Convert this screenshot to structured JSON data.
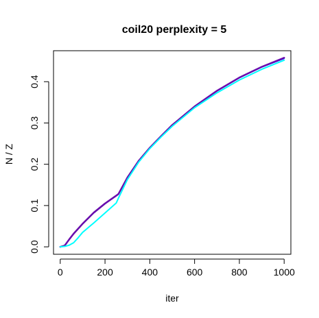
{
  "chart_data": {
    "type": "line",
    "title": "coil20 perplexity = 5",
    "xlabel": "iter",
    "ylabel": "N / Z",
    "xlim": [
      -30,
      1030
    ],
    "ylim": [
      -0.018,
      0.475
    ],
    "xticks": [
      0,
      200,
      400,
      600,
      800,
      1000
    ],
    "yticks": [
      0.0,
      0.1,
      0.2,
      0.3,
      0.4
    ],
    "xtick_labels": [
      "0",
      "200",
      "400",
      "600",
      "800",
      "1000"
    ],
    "ytick_labels": [
      "0.0",
      "0.1",
      "0.2",
      "0.3",
      "0.4"
    ],
    "grid": false,
    "series": [
      {
        "color": "#000000",
        "width": 1.5,
        "x": [
          0,
          20,
          40,
          60,
          100,
          150,
          200,
          250,
          260,
          300,
          350,
          400,
          450,
          500,
          600,
          700,
          800,
          900,
          1000
        ],
        "y": [
          0.0,
          0.004,
          0.018,
          0.031,
          0.055,
          0.082,
          0.104,
          0.124,
          0.128,
          0.168,
          0.208,
          0.24,
          0.268,
          0.295,
          0.34,
          0.378,
          0.41,
          0.436,
          0.458
        ]
      },
      {
        "color": "#0000ff",
        "width": 1.5,
        "x": [
          0,
          20,
          40,
          60,
          100,
          150,
          200,
          250,
          260,
          300,
          350,
          400,
          450,
          500,
          600,
          700,
          800,
          900,
          1000
        ],
        "y": [
          0.0,
          0.003,
          0.017,
          0.031,
          0.055,
          0.082,
          0.104,
          0.123,
          0.127,
          0.167,
          0.207,
          0.239,
          0.268,
          0.294,
          0.34,
          0.377,
          0.409,
          0.435,
          0.456
        ]
      },
      {
        "color": "#6a0dad",
        "width": 2.5,
        "x": [
          0,
          20,
          40,
          60,
          100,
          150,
          200,
          250,
          260,
          300,
          350,
          400,
          450,
          500,
          600,
          700,
          800,
          900,
          1000
        ],
        "y": [
          0.0,
          0.003,
          0.018,
          0.032,
          0.056,
          0.083,
          0.105,
          0.124,
          0.128,
          0.168,
          0.208,
          0.24,
          0.268,
          0.295,
          0.34,
          0.378,
          0.41,
          0.436,
          0.458
        ]
      },
      {
        "color": "#00ffff",
        "width": 2,
        "x": [
          0,
          20,
          40,
          60,
          80,
          100,
          150,
          200,
          250,
          260,
          300,
          350,
          400,
          450,
          500,
          600,
          700,
          800,
          900,
          1000
        ],
        "y": [
          0.0,
          0.001,
          0.004,
          0.01,
          0.022,
          0.035,
          0.058,
          0.082,
          0.106,
          0.118,
          0.163,
          0.205,
          0.238,
          0.266,
          0.292,
          0.337,
          0.373,
          0.404,
          0.43,
          0.452
        ]
      }
    ]
  }
}
